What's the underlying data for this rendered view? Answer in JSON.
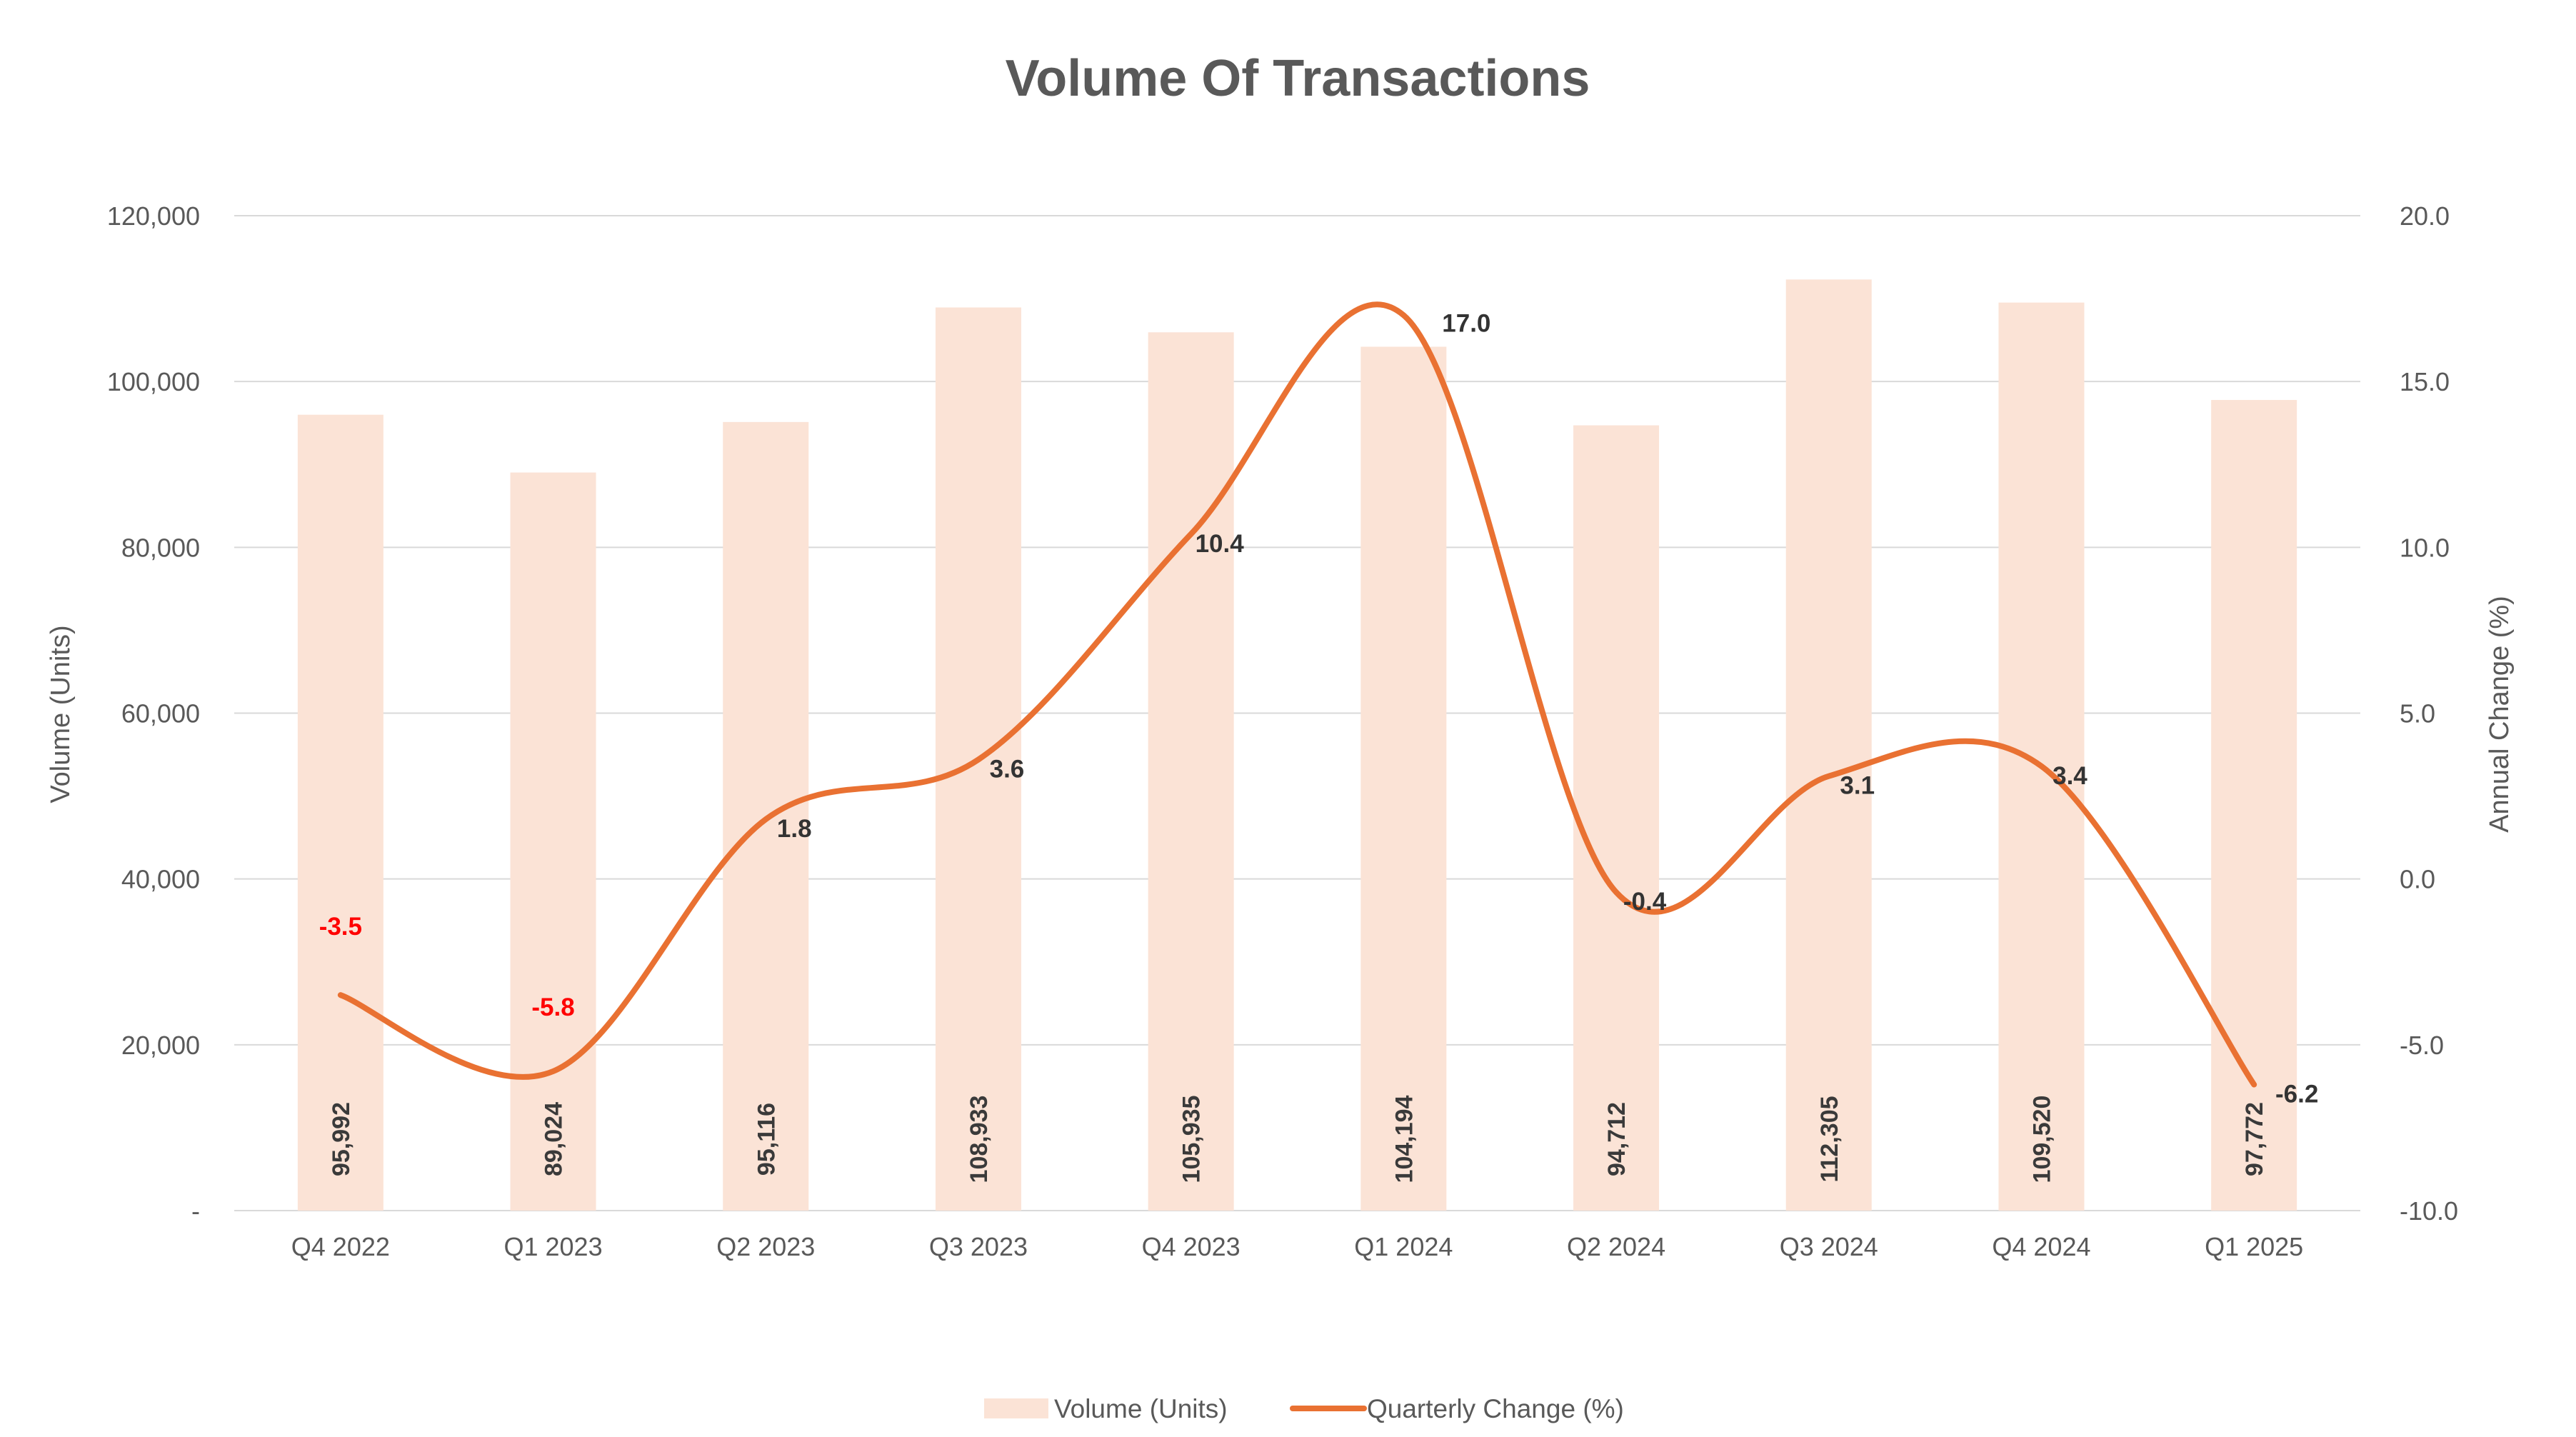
{
  "chart_data": {
    "type": "bar",
    "title": "Volume Of Transactions",
    "categories": [
      "Q4 2022",
      "Q1 2023",
      "Q2 2023",
      "Q3 2023",
      "Q4 2023",
      "Q1 2024",
      "Q2 2024",
      "Q3 2024",
      "Q4 2024",
      "Q1 2025"
    ],
    "series": [
      {
        "name": "Volume (Units)",
        "type": "bar",
        "axis": "left",
        "color": "#fbe3d6",
        "values": [
          95992,
          89024,
          95116,
          108933,
          105935,
          104194,
          94712,
          112305,
          109520,
          97772
        ],
        "labels": [
          "95,992",
          "89,024",
          "95,116",
          "108,933",
          "105,935",
          "104,194",
          "94,712",
          "112,305",
          "109,520",
          "97,772"
        ]
      },
      {
        "name": "Quarterly Change (%)",
        "type": "line",
        "smooth": true,
        "axis": "right",
        "color": "#e97132",
        "values": [
          -3.5,
          -5.8,
          1.8,
          3.6,
          10.4,
          17.0,
          -0.4,
          3.1,
          3.4,
          -6.2
        ],
        "labels": [
          "-3.5",
          "-5.8",
          "1.8",
          "3.6",
          "10.4",
          "17.0",
          "-0.4",
          "3.1",
          "3.4",
          "-6.2"
        ],
        "label_colors": [
          "#ff0000",
          "#ff0000",
          "#333333",
          "#333333",
          "#333333",
          "#333333",
          "#333333",
          "#333333",
          "#333333",
          "#333333"
        ]
      }
    ],
    "y_left": {
      "label": "Volume (Units)",
      "min": 0,
      "max": 120000,
      "ticks": [
        0,
        20000,
        40000,
        60000,
        80000,
        100000,
        120000
      ],
      "tick_labels": [
        "-",
        "20,000",
        "40,000",
        "60,000",
        "80,000",
        "100,000",
        "120,000"
      ]
    },
    "y_right": {
      "label": "Annual Change (%)",
      "min": -10,
      "max": 20,
      "ticks": [
        -10,
        -5,
        0,
        5,
        10,
        15,
        20
      ],
      "tick_labels": [
        "-10.0",
        "-5.0",
        "0.0",
        "5.0",
        "10.0",
        "15.0",
        "20.0"
      ]
    },
    "grid": true,
    "gridline_color": "#d9d9d9",
    "legend_position": "bottom"
  }
}
